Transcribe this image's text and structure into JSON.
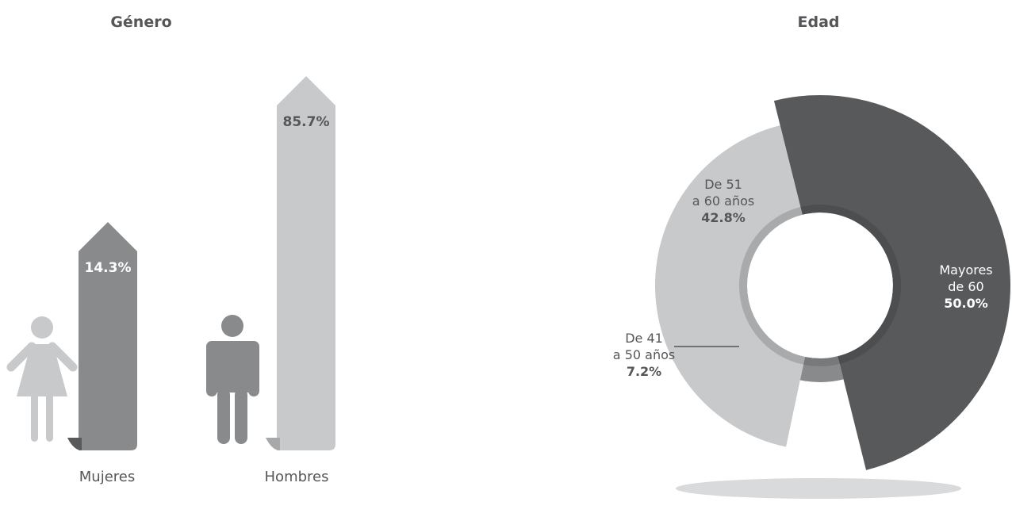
{
  "colors": {
    "dark": "#58595b",
    "mid": "#898a8c",
    "light": "#c8c9cb",
    "text": "#555658",
    "shadow": "#d9dadb",
    "white": "#ffffff"
  },
  "icons": [
    "woman-icon",
    "man-icon"
  ],
  "chart_data": [
    {
      "type": "bar",
      "title": "Género",
      "categories": [
        "Mujeres",
        "Hombres"
      ],
      "values": [
        14.3,
        85.7
      ],
      "value_labels": [
        "14.3%",
        "85.7%"
      ],
      "ylim": [
        0,
        100
      ],
      "xlabel": "",
      "ylabel": "",
      "grid": false,
      "colors": [
        "#898a8c",
        "#c8c9cb"
      ]
    },
    {
      "type": "pie",
      "title": "Edad",
      "categories": [
        "De 41 a 50 años",
        "De 51 a 60 años",
        "Mayores de 60"
      ],
      "values": [
        7.2,
        42.8,
        50.0
      ],
      "slices": [
        {
          "label_lines": [
            "De 41",
            "a 50 años"
          ],
          "pct": "7.2%",
          "value": 7.2,
          "color": "#898a8c"
        },
        {
          "label_lines": [
            "De 51",
            "a 60 años"
          ],
          "pct": "42.8%",
          "value": 42.8,
          "color": "#c8c9cb"
        },
        {
          "label_lines": [
            "Mayores",
            "de 60"
          ],
          "pct": "50.0%",
          "value": 50.0,
          "color": "#58595b"
        }
      ],
      "grid": false
    }
  ]
}
